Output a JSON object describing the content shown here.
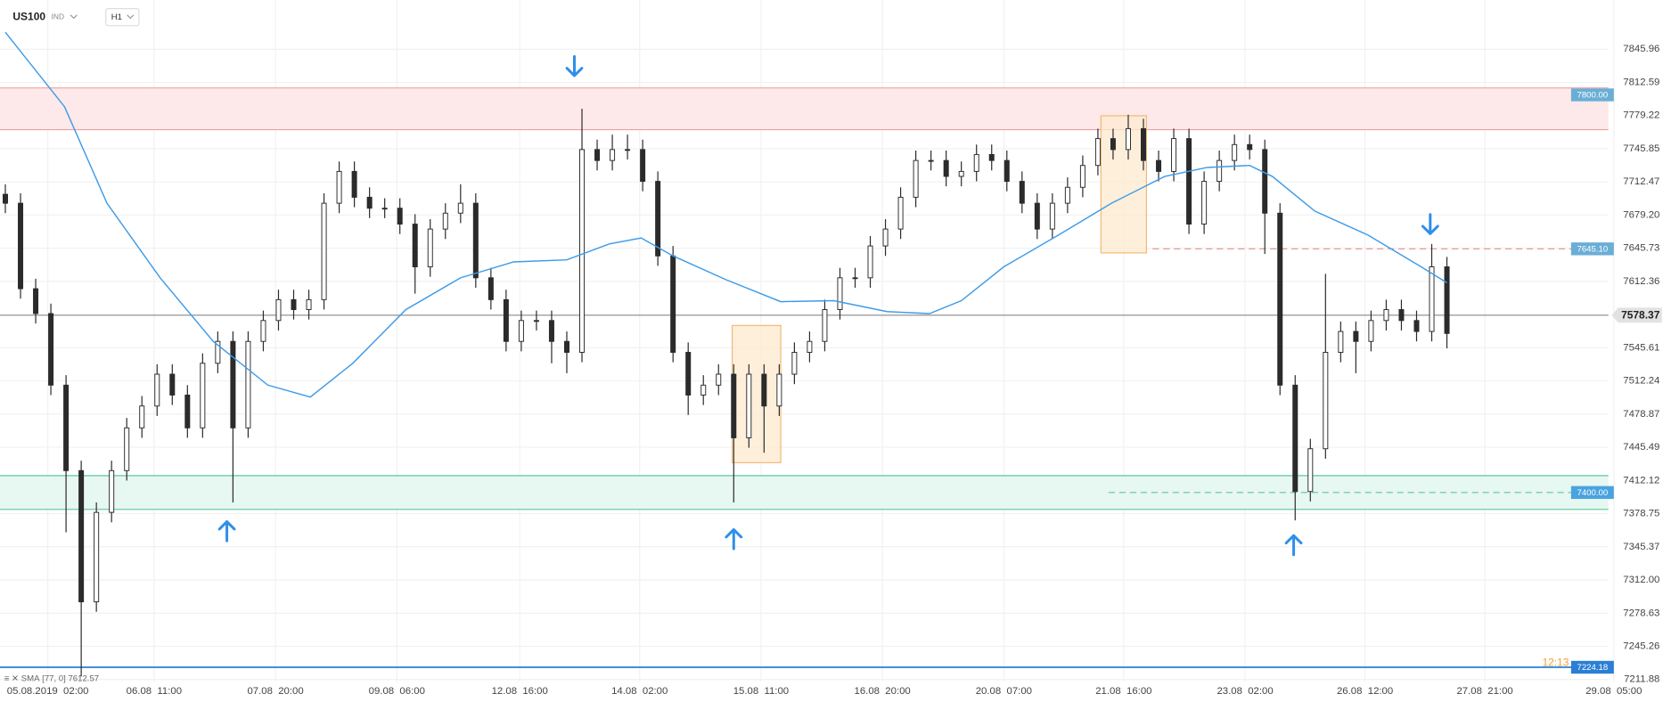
{
  "header": {
    "symbol": "US100",
    "market": "IND",
    "interval": "H1"
  },
  "chart_data": {
    "type": "candlestick",
    "open": [
      7700,
      7691,
      7605,
      7580,
      7508,
      7422,
      7290,
      7380,
      7422,
      7465,
      7487,
      7519,
      7498,
      7465,
      7530,
      7552,
      7465,
      7552,
      7573,
      7594,
      7584,
      7594,
      7691,
      7723,
      7697,
      7686,
      7686,
      7670,
      7627,
      7665,
      7681,
      7691,
      7616,
      7594,
      7552,
      7573,
      7573,
      7552,
      7541,
      7745,
      7734,
      7745,
      7745,
      7713,
      7638,
      7541,
      7498,
      7508,
      7519,
      7455,
      7519,
      7487,
      7519,
      7541,
      7552,
      7584,
      7616,
      7616,
      7648,
      7665,
      7697,
      7734,
      7734,
      7718,
      7723,
      7740,
      7734,
      7713,
      7691,
      7665,
      7691,
      7707,
      7729,
      7756,
      7745,
      7766,
      7734,
      7723,
      7756,
      7670,
      7713,
      7734,
      7750,
      7745,
      7681,
      7508,
      7401,
      7444,
      7541,
      7562,
      7552,
      7573,
      7584,
      7573,
      7562,
      7627
    ],
    "high": [
      7710,
      7701,
      7615,
      7590,
      7518,
      7432,
      7390,
      7432,
      7475,
      7497,
      7529,
      7529,
      7508,
      7540,
      7562,
      7562,
      7562,
      7583,
      7604,
      7604,
      7604,
      7701,
      7733,
      7733,
      7707,
      7696,
      7696,
      7680,
      7675,
      7691,
      7710,
      7701,
      7626,
      7604,
      7583,
      7583,
      7583,
      7562,
      7786,
      7755,
      7760,
      7760,
      7755,
      7723,
      7648,
      7551,
      7518,
      7529,
      7529,
      7529,
      7529,
      7529,
      7551,
      7562,
      7594,
      7626,
      7626,
      7658,
      7675,
      7707,
      7744,
      7744,
      7744,
      7733,
      7750,
      7750,
      7744,
      7723,
      7701,
      7701,
      7717,
      7739,
      7766,
      7766,
      7780,
      7776,
      7744,
      7766,
      7766,
      7723,
      7744,
      7760,
      7760,
      7755,
      7691,
      7518,
      7454,
      7620,
      7572,
      7572,
      7583,
      7594,
      7594,
      7583,
      7650,
      7637
    ],
    "low": [
      7681,
      7595,
      7570,
      7498,
      7360,
      7215,
      7280,
      7370,
      7412,
      7455,
      7477,
      7488,
      7455,
      7455,
      7520,
      7390,
      7455,
      7542,
      7563,
      7574,
      7574,
      7584,
      7681,
      7687,
      7676,
      7676,
      7660,
      7600,
      7617,
      7655,
      7671,
      7606,
      7584,
      7542,
      7542,
      7563,
      7530,
      7520,
      7531,
      7724,
      7724,
      7735,
      7703,
      7628,
      7531,
      7478,
      7488,
      7498,
      7390,
      7445,
      7440,
      7477,
      7509,
      7531,
      7542,
      7574,
      7606,
      7606,
      7638,
      7655,
      7687,
      7724,
      7708,
      7708,
      7713,
      7724,
      7703,
      7681,
      7655,
      7655,
      7681,
      7697,
      7719,
      7735,
      7735,
      7724,
      7713,
      7713,
      7660,
      7660,
      7703,
      7724,
      7735,
      7640,
      7498,
      7372,
      7391,
      7434,
      7531,
      7520,
      7542,
      7563,
      7563,
      7552,
      7552,
      7545
    ],
    "close": [
      7691,
      7605,
      7580,
      7508,
      7422,
      7290,
      7380,
      7422,
      7465,
      7487,
      7519,
      7498,
      7465,
      7530,
      7552,
      7465,
      7552,
      7573,
      7594,
      7584,
      7594,
      7691,
      7723,
      7697,
      7686,
      7686,
      7670,
      7627,
      7665,
      7681,
      7691,
      7616,
      7594,
      7552,
      7573,
      7573,
      7552,
      7541,
      7745,
      7734,
      7745,
      7745,
      7713,
      7638,
      7541,
      7498,
      7508,
      7519,
      7455,
      7519,
      7487,
      7519,
      7541,
      7552,
      7584,
      7616,
      7616,
      7648,
      7665,
      7697,
      7734,
      7734,
      7718,
      7723,
      7740,
      7734,
      7713,
      7691,
      7665,
      7691,
      7707,
      7729,
      7756,
      7745,
      7766,
      7734,
      7723,
      7756,
      7670,
      7713,
      7734,
      7750,
      7745,
      7681,
      7508,
      7401,
      7444,
      7541,
      7562,
      7552,
      7573,
      7584,
      7573,
      7562,
      7627,
      7560
    ],
    "colors": {
      "up": "#ffffff",
      "down": "#2b2b2b",
      "wick": "#2b2b2b"
    },
    "sma": {
      "name": "SMA",
      "params": "[77, 0]",
      "last": 7612.57,
      "color": "#3d9be9",
      "x": [
        0,
        3.9,
        6.7,
        10.2,
        13.7,
        17.3,
        20.1,
        22.9,
        26.4,
        30,
        33.5,
        37,
        39.8,
        41.9,
        44,
        47.5,
        51.1,
        54.6,
        58.1,
        60.9,
        63,
        65.8,
        69.4,
        72.9,
        76.4,
        79.2,
        82,
        83.5,
        86.3,
        89.8,
        93.3,
        95
      ],
      "values": [
        7863,
        7788,
        7691,
        7616,
        7552,
        7508,
        7496,
        7530,
        7584,
        7616,
        7632,
        7634,
        7650,
        7656,
        7638,
        7614,
        7592,
        7593,
        7582,
        7580,
        7593,
        7627,
        7659,
        7691,
        7718,
        7727,
        7729,
        7718,
        7683,
        7659,
        7627,
        7611
      ]
    },
    "xlim": [
      0,
      106
    ],
    "xticks": [
      {
        "value": 2.8,
        "label": "05.08.2019  02:00"
      },
      {
        "value": 9.8,
        "label": "06.08  11:00"
      },
      {
        "value": 17.8,
        "label": "07.08  20:00"
      },
      {
        "value": 25.8,
        "label": "09.08  06:00"
      },
      {
        "value": 33.9,
        "label": "12.08  16:00"
      },
      {
        "value": 41.8,
        "label": "14.08  02:00"
      },
      {
        "value": 49.8,
        "label": "15.08  11:00"
      },
      {
        "value": 57.8,
        "label": "16.08  20:00"
      },
      {
        "value": 65.8,
        "label": "20.08  07:00"
      },
      {
        "value": 73.7,
        "label": "21.08  16:00"
      },
      {
        "value": 81.7,
        "label": "23.08  02:00"
      },
      {
        "value": 89.6,
        "label": "26.08  12:00"
      },
      {
        "value": 97.5,
        "label": "27.08  21:00"
      },
      {
        "value": 106,
        "label": "29.08  05:00"
      }
    ],
    "ylim": [
      7196.8,
      7886.8
    ],
    "yticks": [
      7845.96,
      7812.59,
      7779.22,
      7745.85,
      7712.47,
      {
        "value": 7679.2,
        "label": "7679.20"
      },
      7645.73,
      7612.36,
      7545.61,
      7512.24,
      7478.87,
      7445.49,
      7412.12,
      7378.75,
      7345.37,
      {
        "value": 7312,
        "label": "7312.00"
      },
      7278.63,
      7245.26,
      7211.88
    ],
    "grid": true,
    "levels": [
      {
        "value": 7800,
        "label": "7800.00",
        "color": "#f3a0a0",
        "tag": "#6aaed6",
        "zone": [
          7765,
          7807
        ],
        "fill": "#fde9e9"
      },
      {
        "value": 7645.1,
        "label": "7645.10",
        "color": "#e58f8f",
        "tag": "#6aaed6",
        "dash_from": 75.6
      },
      {
        "value": 7400,
        "label": "7400.00",
        "color": "#5cc7a0",
        "tag": "#4aa3df",
        "zone": [
          7383,
          7417
        ],
        "fill": "#e7f7f1",
        "dash_from": 72.7
      }
    ],
    "last_price": 7578.37,
    "bottom_line": 7224.18,
    "countdown": "12:13",
    "highlights": [
      {
        "x": [
          47.9,
          51.1
        ],
        "y": [
          7430,
          7568
        ]
      },
      {
        "x": [
          72.2,
          75.2
        ],
        "y": [
          7641,
          7779
        ]
      }
    ],
    "arrows": [
      {
        "x": 14.6,
        "y": 7361,
        "dir": "up"
      },
      {
        "x": 48.0,
        "y": 7353,
        "dir": "up"
      },
      {
        "x": 84.9,
        "y": 7347,
        "dir": "up"
      },
      {
        "x": 37.5,
        "y": 7829,
        "dir": "down"
      },
      {
        "x": 93.9,
        "y": 7670,
        "dir": "down"
      }
    ]
  }
}
